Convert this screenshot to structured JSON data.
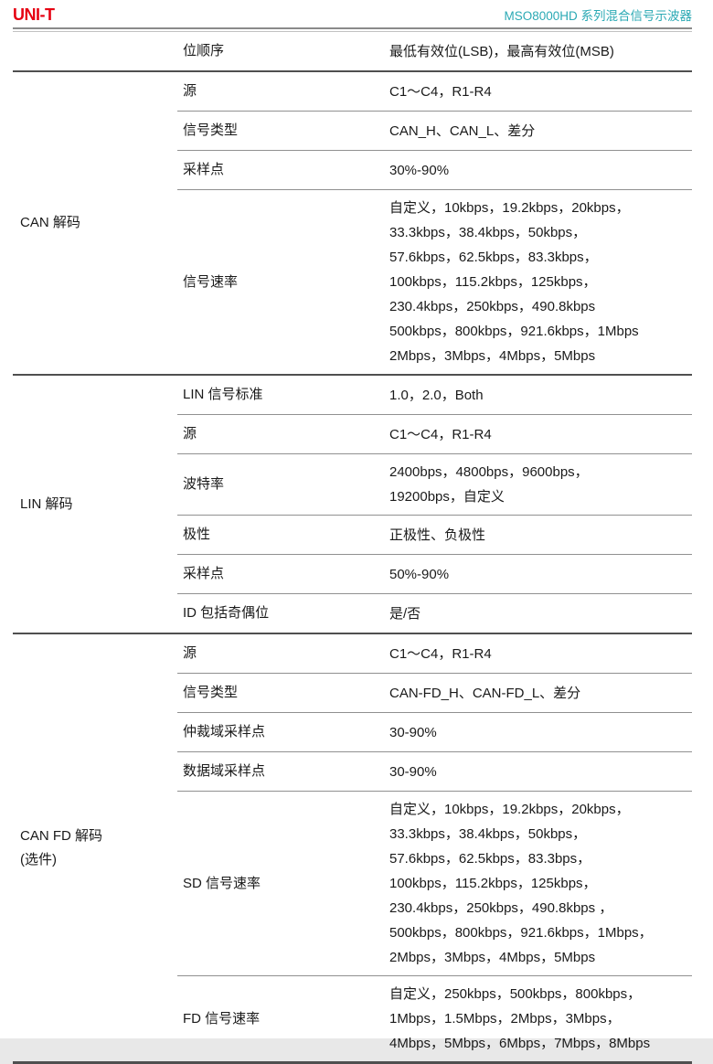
{
  "header": {
    "logo": "UNI-T",
    "title": "MSO8000HD 系列混合信号示波器",
    "logo_color": "#e60012",
    "title_color": "#2ba9b4"
  },
  "table": {
    "sections": [
      {
        "category": "",
        "rows": [
          {
            "param": "位顺序",
            "value": [
              "最低有效位(LSB)，最高有效位(MSB)"
            ]
          }
        ]
      },
      {
        "category": "CAN 解码",
        "rows": [
          {
            "param": "源",
            "value": [
              "C1～C4，R1-R4"
            ]
          },
          {
            "param": "信号类型",
            "value": [
              "CAN_H、CAN_L、差分"
            ]
          },
          {
            "param": "采样点",
            "value": [
              "30%-90%"
            ]
          },
          {
            "param": "信号速率",
            "value": [
              "自定义，10kbps，19.2kbps，20kbps，",
              "33.3kbps，38.4kbps，50kbps，",
              "57.6kbps，62.5kbps，83.3kbps，",
              "100kbps，115.2kbps，125kbps，",
              "230.4kbps，250kbps，490.8kbps",
              "500kbps，800kbps，921.6kbps，1Mbps",
              "2Mbps，3Mbps，4Mbps，5Mbps"
            ]
          }
        ]
      },
      {
        "category": "LIN 解码",
        "rows": [
          {
            "param": "LIN 信号标准",
            "value": [
              "1.0，2.0，Both"
            ]
          },
          {
            "param": "源",
            "value": [
              "C1～C4，R1-R4"
            ]
          },
          {
            "param": "波特率",
            "value": [
              "2400bps，4800bps，9600bps，",
              "19200bps，自定义"
            ]
          },
          {
            "param": "极性",
            "value": [
              "正极性、负极性"
            ]
          },
          {
            "param": "采样点",
            "value": [
              "50%-90%"
            ]
          },
          {
            "param": "ID 包括奇偶位",
            "value": [
              "是/否"
            ]
          }
        ]
      },
      {
        "category": [
          "CAN FD 解码",
          "(选件)"
        ],
        "rows": [
          {
            "param": "源",
            "value": [
              "C1～C4，R1-R4"
            ]
          },
          {
            "param": "信号类型",
            "value": [
              "CAN-FD_H、CAN-FD_L、差分"
            ]
          },
          {
            "param": "仲裁域采样点",
            "value": [
              "30-90%"
            ]
          },
          {
            "param": "数据域采样点",
            "value": [
              "30-90%"
            ]
          },
          {
            "param": "SD 信号速率",
            "value": [
              "自定义，10kbps，19.2kbps，20kbps，",
              "33.3kbps，38.4kbps，50kbps，",
              "57.6kbps，62.5kbps，83.3bps，",
              "100kbps，115.2kbps，125kbps，",
              "230.4kbps，250kbps，490.8kbps ，",
              "500kbps，800kbps，921.6kbps，1Mbps，",
              "2Mbps，3Mbps，4Mbps，5Mbps"
            ]
          },
          {
            "param": "FD 信号速率",
            "value": [
              "自定义，250kbps，500kbps，800kbps，",
              "1Mbps，1.5Mbps，2Mbps，3Mbps，",
              "4Mbps，5Mbps，6Mbps，7Mbps，8Mbps"
            ]
          }
        ]
      }
    ]
  }
}
